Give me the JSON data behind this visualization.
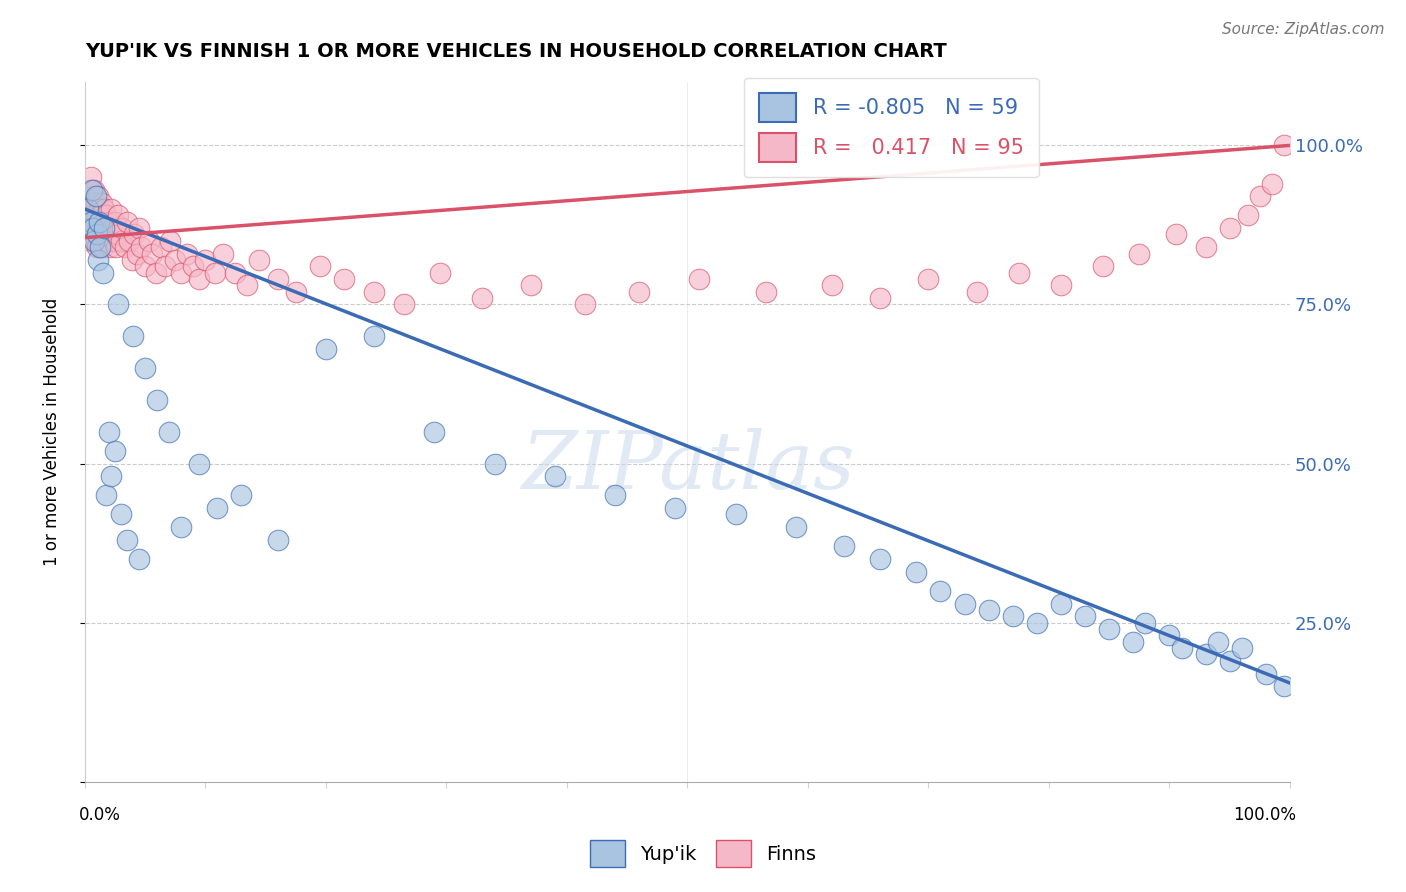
{
  "title": "YUP'IK VS FINNISH 1 OR MORE VEHICLES IN HOUSEHOLD CORRELATION CHART",
  "ylabel": "1 or more Vehicles in Household",
  "source_text": "Source: ZipAtlas.com",
  "legend_blue_label": "Yup'ik",
  "legend_pink_label": "Finns",
  "blue_R": -0.805,
  "blue_N": 59,
  "pink_R": 0.417,
  "pink_N": 95,
  "blue_color": "#A8C4E0",
  "pink_color": "#F5B8C8",
  "blue_line_color": "#3B6BB5",
  "pink_line_color": "#D9526A",
  "blue_trend_x0": 0.0,
  "blue_trend_y0": 0.9,
  "blue_trend_x1": 1.0,
  "blue_trend_y1": 0.155,
  "pink_trend_x0": 0.0,
  "pink_trend_y0": 0.855,
  "pink_trend_x1": 1.0,
  "pink_trend_y1": 1.0,
  "watermark": "ZIPatlas",
  "xlim": [
    0,
    1
  ],
  "ylim": [
    0,
    1.1
  ],
  "ytick_vals": [
    0.0,
    0.25,
    0.5,
    0.75,
    1.0
  ],
  "ytick_right_labels": [
    "",
    "25.0%",
    "50.0%",
    "75.0%",
    "100.0%"
  ],
  "blue_x": [
    0.003,
    0.005,
    0.006,
    0.007,
    0.008,
    0.009,
    0.01,
    0.011,
    0.012,
    0.013,
    0.015,
    0.016,
    0.018,
    0.02,
    0.022,
    0.025,
    0.028,
    0.03,
    0.035,
    0.04,
    0.045,
    0.05,
    0.06,
    0.07,
    0.08,
    0.095,
    0.11,
    0.13,
    0.16,
    0.2,
    0.24,
    0.29,
    0.34,
    0.39,
    0.44,
    0.49,
    0.54,
    0.59,
    0.63,
    0.66,
    0.69,
    0.71,
    0.73,
    0.75,
    0.77,
    0.79,
    0.81,
    0.83,
    0.85,
    0.87,
    0.88,
    0.9,
    0.91,
    0.93,
    0.94,
    0.95,
    0.96,
    0.98,
    0.995
  ],
  "blue_y": [
    0.9,
    0.88,
    0.93,
    0.87,
    0.85,
    0.92,
    0.86,
    0.82,
    0.88,
    0.84,
    0.8,
    0.87,
    0.45,
    0.55,
    0.48,
    0.52,
    0.75,
    0.42,
    0.38,
    0.7,
    0.35,
    0.65,
    0.6,
    0.55,
    0.4,
    0.5,
    0.43,
    0.45,
    0.38,
    0.68,
    0.7,
    0.55,
    0.5,
    0.48,
    0.45,
    0.43,
    0.42,
    0.4,
    0.37,
    0.35,
    0.33,
    0.3,
    0.28,
    0.27,
    0.26,
    0.25,
    0.28,
    0.26,
    0.24,
    0.22,
    0.25,
    0.23,
    0.21,
    0.2,
    0.22,
    0.19,
    0.21,
    0.17,
    0.15
  ],
  "pink_x": [
    0.002,
    0.003,
    0.004,
    0.004,
    0.005,
    0.005,
    0.006,
    0.006,
    0.007,
    0.007,
    0.008,
    0.008,
    0.009,
    0.009,
    0.01,
    0.01,
    0.011,
    0.011,
    0.012,
    0.012,
    0.013,
    0.013,
    0.014,
    0.014,
    0.015,
    0.015,
    0.016,
    0.017,
    0.018,
    0.019,
    0.02,
    0.021,
    0.022,
    0.023,
    0.024,
    0.025,
    0.026,
    0.027,
    0.028,
    0.03,
    0.031,
    0.033,
    0.035,
    0.037,
    0.039,
    0.041,
    0.043,
    0.045,
    0.047,
    0.05,
    0.053,
    0.056,
    0.059,
    0.063,
    0.067,
    0.071,
    0.075,
    0.08,
    0.085,
    0.09,
    0.095,
    0.1,
    0.108,
    0.115,
    0.125,
    0.135,
    0.145,
    0.16,
    0.175,
    0.195,
    0.215,
    0.24,
    0.265,
    0.295,
    0.33,
    0.37,
    0.415,
    0.46,
    0.51,
    0.565,
    0.62,
    0.66,
    0.7,
    0.74,
    0.775,
    0.81,
    0.845,
    0.875,
    0.905,
    0.93,
    0.95,
    0.965,
    0.975,
    0.985,
    0.995
  ],
  "pink_y": [
    0.91,
    0.89,
    0.93,
    0.87,
    0.95,
    0.85,
    0.92,
    0.88,
    0.9,
    0.86,
    0.93,
    0.88,
    0.91,
    0.85,
    0.89,
    0.84,
    0.92,
    0.87,
    0.9,
    0.86,
    0.89,
    0.84,
    0.91,
    0.87,
    0.88,
    0.84,
    0.9,
    0.86,
    0.89,
    0.85,
    0.88,
    0.84,
    0.9,
    0.87,
    0.85,
    0.88,
    0.84,
    0.86,
    0.89,
    0.85,
    0.87,
    0.84,
    0.88,
    0.85,
    0.82,
    0.86,
    0.83,
    0.87,
    0.84,
    0.81,
    0.85,
    0.83,
    0.8,
    0.84,
    0.81,
    0.85,
    0.82,
    0.8,
    0.83,
    0.81,
    0.79,
    0.82,
    0.8,
    0.83,
    0.8,
    0.78,
    0.82,
    0.79,
    0.77,
    0.81,
    0.79,
    0.77,
    0.75,
    0.8,
    0.76,
    0.78,
    0.75,
    0.77,
    0.79,
    0.77,
    0.78,
    0.76,
    0.79,
    0.77,
    0.8,
    0.78,
    0.81,
    0.83,
    0.86,
    0.84,
    0.87,
    0.89,
    0.92,
    0.94,
    1.0
  ]
}
